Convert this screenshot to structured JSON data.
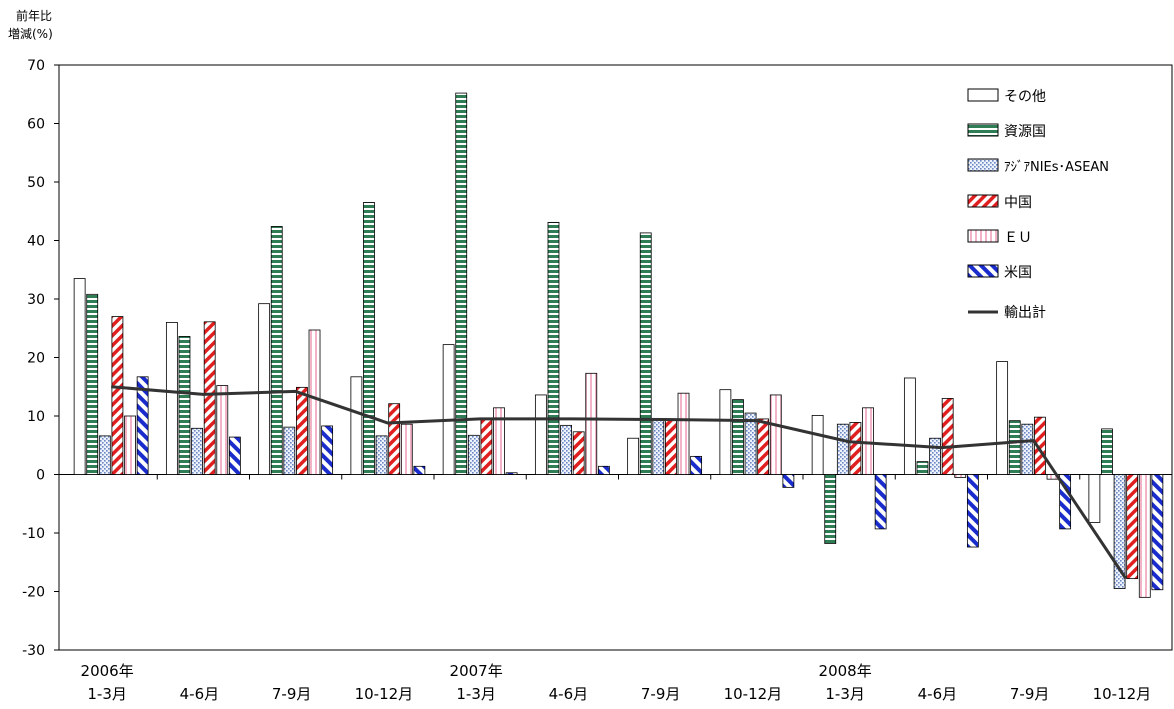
{
  "chart_data": {
    "type": "bar",
    "y_axis_label_lines": [
      "前年比",
      "増減(%)"
    ],
    "ylim": [
      -30,
      70
    ],
    "yticks": [
      -30,
      -20,
      -10,
      0,
      10,
      20,
      30,
      40,
      50,
      60,
      70
    ],
    "grid": false,
    "legend_position": "top-right",
    "categories": [
      {
        "year": "2006年",
        "period": "1-3月"
      },
      {
        "year": "",
        "period": "4-6月"
      },
      {
        "year": "",
        "period": "7-9月"
      },
      {
        "year": "",
        "period": "10-12月"
      },
      {
        "year": "2007年",
        "period": "1-3月"
      },
      {
        "year": "",
        "period": "4-6月"
      },
      {
        "year": "",
        "period": "7-9月"
      },
      {
        "year": "",
        "period": "10-12月"
      },
      {
        "year": "2008年",
        "period": "1-3月"
      },
      {
        "year": "",
        "period": "4-6月"
      },
      {
        "year": "",
        "period": "7-9月"
      },
      {
        "year": "",
        "period": "10-12月"
      }
    ],
    "series": [
      {
        "name": "その他",
        "pattern": "hollow",
        "color": "#000000",
        "values": [
          33.5,
          26.0,
          29.2,
          16.7,
          22.2,
          13.6,
          6.2,
          14.5,
          10.1,
          16.5,
          19.3,
          -8.2
        ]
      },
      {
        "name": "資源国",
        "pattern": "h-stripes",
        "color": "#2e7d55",
        "values": [
          30.8,
          23.6,
          42.4,
          46.5,
          65.2,
          43.1,
          41.3,
          12.8,
          -11.8,
          2.2,
          9.2,
          7.8
        ]
      },
      {
        "name": "ｱｼﾞｱNIEs･ASEAN",
        "pattern": "dots",
        "color": "#6a86c4",
        "values": [
          6.6,
          7.9,
          8.1,
          6.6,
          6.7,
          8.4,
          9.5,
          10.5,
          8.6,
          6.2,
          8.6,
          -19.5
        ]
      },
      {
        "name": "中国",
        "pattern": "diag-red",
        "color": "#e02020",
        "values": [
          27.0,
          26.1,
          14.9,
          12.1,
          9.6,
          7.3,
          9.5,
          9.5,
          8.9,
          13.0,
          9.8,
          -17.8
        ]
      },
      {
        "name": "ＥＵ",
        "pattern": "v-pink",
        "color": "#e48aa8",
        "values": [
          10.0,
          15.2,
          24.7,
          8.6,
          11.4,
          17.3,
          13.9,
          13.6,
          11.4,
          -0.5,
          -0.8,
          -21.0
        ]
      },
      {
        "name": "米国",
        "pattern": "diag-blue",
        "color": "#1a2ccc",
        "values": [
          16.7,
          6.4,
          8.3,
          1.4,
          0.3,
          1.4,
          3.1,
          -2.2,
          -9.3,
          -12.4,
          -9.3,
          -19.7
        ]
      },
      {
        "name": "輸出計",
        "type": "line",
        "color": "#333333",
        "values": [
          15.0,
          13.7,
          14.2,
          8.8,
          9.5,
          9.5,
          9.4,
          9.2,
          5.6,
          4.6,
          5.8,
          -17.8
        ]
      }
    ]
  }
}
